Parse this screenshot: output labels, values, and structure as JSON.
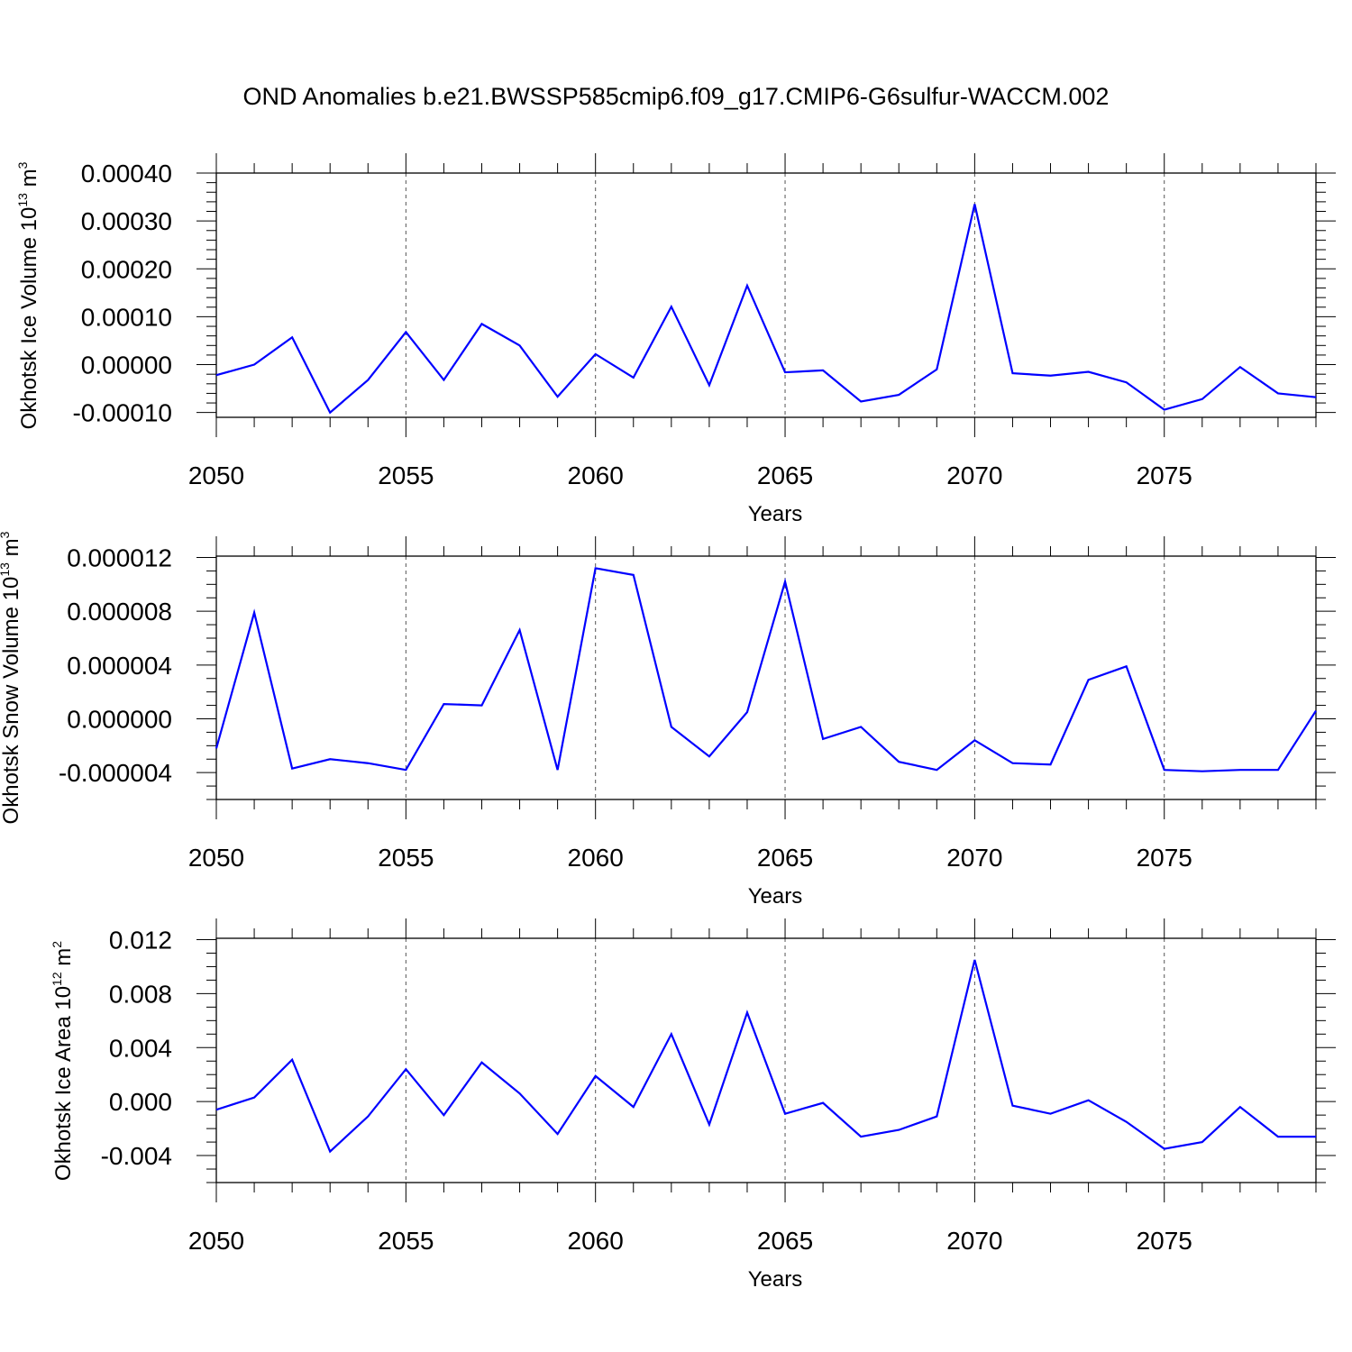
{
  "title": "OND Anomalies b.e21.BWSSP585cmip6.f09_g17.CMIP6-G6sulfur-WACCM.002",
  "series_color": "#0000ff",
  "chart_data": [
    {
      "type": "line",
      "id": "ice-volume",
      "ylabel_main": "Okhotsk Ice Volume 10",
      "ylabel_exp": "13",
      "ylabel_unit": " m",
      "ylabel_unit_exp": "3",
      "xlabel": "Years",
      "xlim": [
        2050,
        2079
      ],
      "ylim": [
        -0.00011,
        0.0004
      ],
      "xticks": [
        2050,
        2055,
        2060,
        2065,
        2070,
        2075
      ],
      "xtick_labels": [
        "2050",
        "2055",
        "2060",
        "2065",
        "2070",
        "2075"
      ],
      "yticks": [
        -0.0001,
        0.0,
        0.0001,
        0.0002,
        0.0003,
        0.0004
      ],
      "ytick_labels": [
        "-0.00010",
        "0.00000",
        "0.00010",
        "0.00020",
        "0.00030",
        "0.00040"
      ],
      "yminor_step": 2e-05,
      "x": [
        2050,
        2051,
        2052,
        2053,
        2054,
        2055,
        2056,
        2057,
        2058,
        2059,
        2060,
        2061,
        2062,
        2063,
        2064,
        2065,
        2066,
        2067,
        2068,
        2069,
        2070,
        2071,
        2072,
        2073,
        2074,
        2075,
        2076,
        2077,
        2078,
        2079
      ],
      "values": [
        -2.2e-05,
        0.0,
        5.7e-05,
        -0.0001,
        -3.2e-05,
        6.8e-05,
        -3.2e-05,
        8.5e-05,
        4e-05,
        -6.7e-05,
        2.2e-05,
        -2.7e-05,
        0.000121,
        -4.3e-05,
        0.000165,
        -1.6e-05,
        -1.2e-05,
        -7.7e-05,
        -6.3e-05,
        -1e-05,
        0.000335,
        -1.8e-05,
        -2.3e-05,
        -1.5e-05,
        -3.7e-05,
        -9.4e-05,
        -7.2e-05,
        -5e-06,
        -6e-05,
        -6.8e-05
      ]
    },
    {
      "type": "line",
      "id": "snow-volume",
      "ylabel_main": "Okhotsk Snow Volume 10",
      "ylabel_exp": "13",
      "ylabel_unit": " m",
      "ylabel_unit_exp": "3",
      "xlabel": "Years",
      "xlim": [
        2050,
        2079
      ],
      "ylim": [
        -6e-06,
        1.21e-05
      ],
      "xticks": [
        2050,
        2055,
        2060,
        2065,
        2070,
        2075
      ],
      "xtick_labels": [
        "2050",
        "2055",
        "2060",
        "2065",
        "2070",
        "2075"
      ],
      "yticks": [
        -4e-06,
        0.0,
        4e-06,
        8e-06,
        1.2e-05
      ],
      "ytick_labels": [
        "-0.000004",
        "0.000000",
        "0.000004",
        "0.000008",
        "0.000012"
      ],
      "yminor_step": 1e-06,
      "x": [
        2050,
        2051,
        2052,
        2053,
        2054,
        2055,
        2056,
        2057,
        2058,
        2059,
        2060,
        2061,
        2062,
        2063,
        2064,
        2065,
        2066,
        2067,
        2068,
        2069,
        2070,
        2071,
        2072,
        2073,
        2074,
        2075,
        2076,
        2077,
        2078,
        2079
      ],
      "values": [
        -2.2e-06,
        7.9e-06,
        -3.7e-06,
        -3e-06,
        -3.3e-06,
        -3.8e-06,
        1.1e-06,
        1e-06,
        6.6e-06,
        -3.8e-06,
        1.12e-05,
        1.07e-05,
        -6e-07,
        -2.8e-06,
        5e-07,
        1.02e-05,
        -1.5e-06,
        -6e-07,
        -3.2e-06,
        -3.8e-06,
        -1.6e-06,
        -3.3e-06,
        -3.4e-06,
        2.9e-06,
        3.9e-06,
        -3.8e-06,
        -3.9e-06,
        -3.8e-06,
        -3.8e-06,
        6e-07
      ]
    },
    {
      "type": "line",
      "id": "ice-area",
      "ylabel_main": "Okhotsk Ice Area 10",
      "ylabel_exp": "12",
      "ylabel_unit": " m",
      "ylabel_unit_exp": "2",
      "xlabel": "Years",
      "xlim": [
        2050,
        2079
      ],
      "ylim": [
        -0.006,
        0.0121
      ],
      "xticks": [
        2050,
        2055,
        2060,
        2065,
        2070,
        2075
      ],
      "xtick_labels": [
        "2050",
        "2055",
        "2060",
        "2065",
        "2070",
        "2075"
      ],
      "yticks": [
        -0.004,
        0.0,
        0.004,
        0.008,
        0.012
      ],
      "ytick_labels": [
        "-0.004",
        "0.000",
        "0.004",
        "0.008",
        "0.012"
      ],
      "yminor_step": 0.001,
      "x": [
        2050,
        2051,
        2052,
        2053,
        2054,
        2055,
        2056,
        2057,
        2058,
        2059,
        2060,
        2061,
        2062,
        2063,
        2064,
        2065,
        2066,
        2067,
        2068,
        2069,
        2070,
        2071,
        2072,
        2073,
        2074,
        2075,
        2076,
        2077,
        2078,
        2079
      ],
      "values": [
        -0.0006,
        0.0003,
        0.0031,
        -0.0037,
        -0.0011,
        0.0024,
        -0.001,
        0.0029,
        0.0006,
        -0.0024,
        0.0019,
        -0.0004,
        0.005,
        -0.0017,
        0.0066,
        -0.0009,
        -0.0001,
        -0.0026,
        -0.0021,
        -0.0011,
        0.0105,
        -0.0003,
        -0.0009,
        0.0001,
        -0.0015,
        -0.0035,
        -0.003,
        -0.0004,
        -0.0026,
        -0.0026
      ]
    }
  ]
}
